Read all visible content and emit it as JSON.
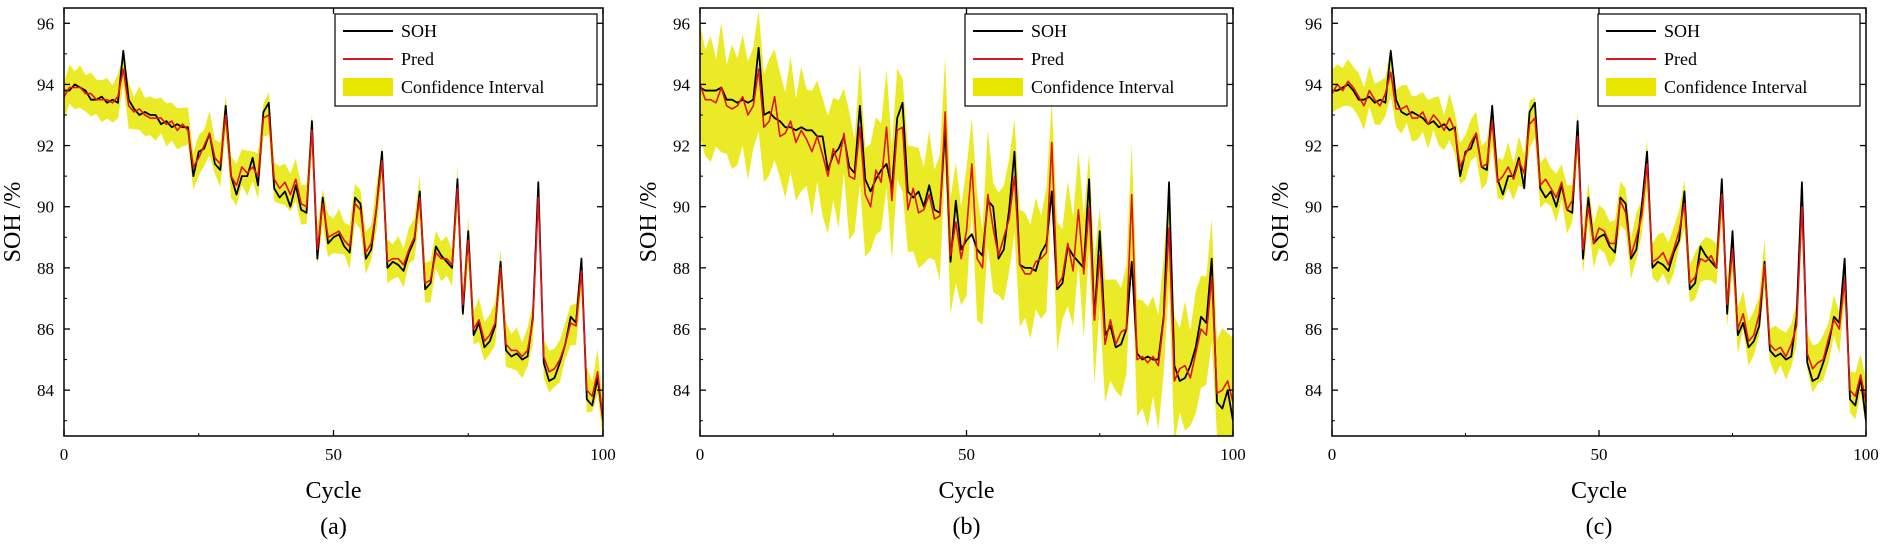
{
  "colors": {
    "soh": "#000000",
    "pred": "#e0141e",
    "ci": "#e8e600",
    "axis": "#000000",
    "background": "#ffffff"
  },
  "legend_labels": {
    "soh": "SOH",
    "pred": "Pred",
    "ci": "Confidence Interval"
  },
  "chart_data": [
    {
      "type": "line",
      "panel_label": "(a)",
      "xlabel": "Cycle",
      "ylabel": "SOH /%",
      "xlim": [
        0,
        100
      ],
      "ylim": [
        82.5,
        96.5
      ],
      "x_ticks": [
        0,
        50,
        100
      ],
      "y_ticks": [
        84,
        86,
        88,
        90,
        92,
        94,
        96
      ],
      "grid": false,
      "legend_position": "top-right",
      "x": [
        0,
        1,
        2,
        3,
        4,
        5,
        6,
        7,
        8,
        9,
        10,
        11,
        12,
        13,
        14,
        15,
        16,
        17,
        18,
        19,
        20,
        21,
        22,
        23,
        24,
        25,
        26,
        27,
        28,
        29,
        30,
        31,
        32,
        33,
        34,
        35,
        36,
        37,
        38,
        39,
        40,
        41,
        42,
        43,
        44,
        45,
        46,
        47,
        48,
        49,
        50,
        51,
        52,
        53,
        54,
        55,
        56,
        57,
        58,
        59,
        60,
        61,
        62,
        63,
        64,
        65,
        66,
        67,
        68,
        69,
        70,
        71,
        72,
        73,
        74,
        75,
        76,
        77,
        78,
        79,
        80,
        81,
        82,
        83,
        84,
        85,
        86,
        87,
        88,
        89,
        90,
        91,
        92,
        93,
        94,
        95,
        96,
        97,
        98,
        99,
        100
      ],
      "series": [
        {
          "name": "SOH",
          "values": [
            93.8,
            93.8,
            94.0,
            93.9,
            93.8,
            93.5,
            93.5,
            93.6,
            93.4,
            93.5,
            93.4,
            95.1,
            93.5,
            93.2,
            93.0,
            93.1,
            93.0,
            93.0,
            92.7,
            92.8,
            92.6,
            92.7,
            92.6,
            92.6,
            91.0,
            91.8,
            91.9,
            92.4,
            91.4,
            91.2,
            93.3,
            91.0,
            90.4,
            91.0,
            91.0,
            91.6,
            90.7,
            93.1,
            93.4,
            90.6,
            90.3,
            90.5,
            90.0,
            90.7,
            89.9,
            89.8,
            92.8,
            88.3,
            90.3,
            88.8,
            89.0,
            89.1,
            88.7,
            88.5,
            90.3,
            90.1,
            88.3,
            88.6,
            90.0,
            91.8,
            88.0,
            88.2,
            88.1,
            87.9,
            88.5,
            88.9,
            90.5,
            87.3,
            87.5,
            88.7,
            88.4,
            88.2,
            88.0,
            90.9,
            86.5,
            89.2,
            85.8,
            86.2,
            85.4,
            85.6,
            86.1,
            88.2,
            85.3,
            85.1,
            85.2,
            85.0,
            85.1,
            86.4,
            90.8,
            84.9,
            84.3,
            84.4,
            84.9,
            85.5,
            86.4,
            86.2,
            88.3,
            83.7,
            83.5,
            84.4,
            83.0
          ]
        },
        {
          "name": "Pred",
          "values": [
            93.6,
            93.9,
            93.9,
            93.9,
            93.7,
            93.7,
            93.5,
            93.5,
            93.5,
            93.4,
            93.6,
            94.5,
            93.3,
            93.1,
            93.2,
            93.0,
            92.9,
            92.9,
            92.9,
            92.7,
            92.8,
            92.5,
            92.7,
            92.5,
            91.3,
            91.6,
            92.0,
            92.4,
            91.6,
            91.4,
            93.0,
            91.0,
            90.7,
            91.3,
            91.1,
            91.3,
            91.0,
            92.9,
            93.0,
            90.9,
            90.6,
            90.8,
            90.4,
            90.9,
            90.1,
            90.0,
            92.5,
            88.6,
            90.1,
            89.0,
            89.1,
            89.2,
            88.9,
            88.7,
            90.1,
            89.9,
            88.5,
            88.8,
            90.0,
            91.5,
            88.2,
            88.3,
            88.3,
            88.1,
            88.6,
            89.0,
            90.3,
            87.5,
            87.6,
            88.5,
            88.3,
            88.3,
            88.1,
            90.6,
            86.8,
            88.9,
            86.0,
            86.3,
            85.6,
            85.8,
            86.2,
            88.0,
            85.5,
            85.3,
            85.3,
            85.1,
            85.3,
            86.3,
            90.3,
            85.1,
            84.6,
            84.7,
            85.0,
            85.5,
            86.2,
            86.1,
            87.9,
            84.0,
            83.8,
            84.6,
            83.0
          ]
        }
      ],
      "ci_halfwidth": 0.6
    },
    {
      "type": "line",
      "panel_label": "(b)",
      "xlabel": "Cycle",
      "ylabel": "SOH /%",
      "xlim": [
        0,
        100
      ],
      "ylim": [
        82.5,
        96.5
      ],
      "x_ticks": [
        0,
        50,
        100
      ],
      "y_ticks": [
        84,
        86,
        88,
        90,
        92,
        94,
        96
      ],
      "grid": false,
      "legend_position": "top-right",
      "x": [
        0,
        1,
        2,
        3,
        4,
        5,
        6,
        7,
        8,
        9,
        10,
        11,
        12,
        13,
        14,
        15,
        16,
        17,
        18,
        19,
        20,
        21,
        22,
        23,
        24,
        25,
        26,
        27,
        28,
        29,
        30,
        31,
        32,
        33,
        34,
        35,
        36,
        37,
        38,
        39,
        40,
        41,
        42,
        43,
        44,
        45,
        46,
        47,
        48,
        49,
        50,
        51,
        52,
        53,
        54,
        55,
        56,
        57,
        58,
        59,
        60,
        61,
        62,
        63,
        64,
        65,
        66,
        67,
        68,
        69,
        70,
        71,
        72,
        73,
        74,
        75,
        76,
        77,
        78,
        79,
        80,
        81,
        82,
        83,
        84,
        85,
        86,
        87,
        88,
        89,
        90,
        91,
        92,
        93,
        94,
        95,
        96,
        97,
        98,
        99,
        100
      ],
      "series": [
        {
          "name": "SOH",
          "values": [
            93.9,
            93.8,
            93.8,
            93.8,
            93.9,
            93.5,
            93.5,
            93.4,
            93.5,
            93.4,
            93.5,
            95.2,
            93.0,
            93.1,
            92.9,
            92.8,
            92.6,
            92.6,
            92.5,
            92.6,
            92.5,
            92.5,
            92.3,
            92.3,
            91.2,
            91.7,
            91.9,
            92.3,
            91.3,
            91.1,
            93.3,
            90.9,
            90.5,
            90.9,
            91.2,
            91.4,
            90.6,
            92.9,
            93.4,
            90.5,
            90.3,
            90.5,
            90.0,
            90.7,
            89.9,
            89.8,
            92.6,
            88.2,
            90.2,
            88.6,
            88.9,
            89.1,
            88.6,
            88.4,
            90.2,
            90.0,
            88.3,
            88.6,
            89.9,
            91.8,
            88.1,
            88.0,
            88.0,
            87.9,
            88.5,
            88.8,
            90.5,
            87.3,
            87.5,
            88.7,
            88.4,
            88.2,
            88.0,
            90.9,
            86.3,
            89.2,
            85.8,
            86.1,
            85.4,
            85.5,
            86.0,
            88.2,
            85.2,
            85.0,
            85.1,
            85.0,
            85.0,
            86.4,
            90.8,
            84.8,
            84.3,
            84.4,
            84.8,
            85.4,
            86.4,
            86.2,
            88.3,
            83.6,
            83.4,
            84.0,
            83.0
          ]
        },
        {
          "name": "Pred",
          "values": [
            94.0,
            93.5,
            93.5,
            93.4,
            93.9,
            93.3,
            93.2,
            93.3,
            93.6,
            93.0,
            93.3,
            94.5,
            92.6,
            92.8,
            93.6,
            92.3,
            92.4,
            92.8,
            92.1,
            92.5,
            92.2,
            91.8,
            92.3,
            91.7,
            91.0,
            91.9,
            91.4,
            92.4,
            91.0,
            90.9,
            92.6,
            90.4,
            90.0,
            91.2,
            90.8,
            92.6,
            90.2,
            92.5,
            92.6,
            89.9,
            90.6,
            89.8,
            89.9,
            90.4,
            89.6,
            89.7,
            93.1,
            88.4,
            89.5,
            88.3,
            89.2,
            91.4,
            88.3,
            88.0,
            90.4,
            89.3,
            88.4,
            89.0,
            89.6,
            91.0,
            88.1,
            87.8,
            87.8,
            88.2,
            88.3,
            88.5,
            92.1,
            87.4,
            87.7,
            88.8,
            87.9,
            89.9,
            87.8,
            90.0,
            86.3,
            88.4,
            85.5,
            86.3,
            85.5,
            85.9,
            86.0,
            90.4,
            85.0,
            85.1,
            84.9,
            85.1,
            84.8,
            86.3,
            89.3,
            84.3,
            84.7,
            84.8,
            84.4,
            85.2,
            86.0,
            85.8,
            87.7,
            83.9,
            84.0,
            84.3,
            83.6
          ]
        }
      ],
      "ci_halfwidth": 1.7
    },
    {
      "type": "line",
      "panel_label": "(c)",
      "xlabel": "Cycle",
      "ylabel": "SOH /%",
      "xlim": [
        0,
        100
      ],
      "ylim": [
        82.5,
        96.5
      ],
      "x_ticks": [
        0,
        50,
        100
      ],
      "y_ticks": [
        84,
        86,
        88,
        90,
        92,
        94,
        96
      ],
      "grid": false,
      "legend_position": "top-right",
      "x": [
        0,
        1,
        2,
        3,
        4,
        5,
        6,
        7,
        8,
        9,
        10,
        11,
        12,
        13,
        14,
        15,
        16,
        17,
        18,
        19,
        20,
        21,
        22,
        23,
        24,
        25,
        26,
        27,
        28,
        29,
        30,
        31,
        32,
        33,
        34,
        35,
        36,
        37,
        38,
        39,
        40,
        41,
        42,
        43,
        44,
        45,
        46,
        47,
        48,
        49,
        50,
        51,
        52,
        53,
        54,
        55,
        56,
        57,
        58,
        59,
        60,
        61,
        62,
        63,
        64,
        65,
        66,
        67,
        68,
        69,
        70,
        71,
        72,
        73,
        74,
        75,
        76,
        77,
        78,
        79,
        80,
        81,
        82,
        83,
        84,
        85,
        86,
        87,
        88,
        89,
        90,
        91,
        92,
        93,
        94,
        95,
        96,
        97,
        98,
        99,
        100
      ],
      "series": [
        {
          "name": "SOH",
          "values": [
            93.8,
            93.8,
            93.9,
            94.0,
            93.8,
            93.5,
            93.5,
            93.6,
            93.4,
            93.5,
            93.4,
            95.1,
            93.5,
            93.1,
            93.0,
            93.1,
            93.0,
            92.9,
            92.7,
            92.8,
            92.6,
            92.7,
            92.5,
            92.6,
            91.0,
            91.8,
            91.9,
            92.4,
            91.3,
            91.2,
            93.3,
            90.9,
            90.4,
            91.0,
            91.0,
            91.6,
            90.6,
            93.1,
            93.4,
            90.6,
            90.3,
            90.5,
            90.0,
            90.7,
            89.9,
            89.8,
            92.8,
            88.3,
            90.3,
            88.8,
            89.0,
            89.1,
            88.7,
            88.5,
            90.3,
            90.1,
            88.3,
            88.6,
            90.0,
            91.8,
            88.0,
            88.2,
            88.1,
            87.9,
            88.5,
            88.9,
            90.5,
            87.3,
            87.5,
            88.7,
            88.4,
            88.2,
            88.0,
            90.9,
            86.5,
            89.2,
            85.8,
            86.2,
            85.4,
            85.6,
            86.1,
            88.2,
            85.3,
            85.1,
            85.2,
            85.0,
            85.1,
            86.4,
            90.8,
            84.9,
            84.3,
            84.4,
            84.9,
            85.5,
            86.4,
            86.2,
            88.3,
            83.7,
            83.5,
            84.4,
            83.0
          ]
        },
        {
          "name": "Pred",
          "values": [
            93.7,
            94.0,
            93.8,
            94.1,
            93.9,
            93.6,
            93.3,
            93.8,
            93.5,
            93.3,
            93.7,
            94.4,
            93.2,
            93.2,
            93.3,
            92.9,
            92.9,
            93.1,
            92.7,
            93.0,
            92.8,
            92.5,
            92.9,
            92.5,
            91.3,
            91.7,
            92.1,
            92.4,
            91.3,
            91.4,
            92.8,
            90.8,
            91.0,
            91.3,
            90.9,
            91.5,
            91.1,
            92.7,
            92.9,
            90.7,
            90.9,
            90.6,
            90.3,
            90.8,
            89.9,
            90.2,
            92.3,
            88.6,
            90.0,
            88.8,
            89.3,
            89.2,
            88.8,
            88.8,
            90.2,
            89.8,
            88.4,
            89.0,
            89.7,
            91.4,
            88.2,
            88.3,
            88.5,
            88.1,
            88.6,
            89.2,
            90.1,
            87.5,
            87.7,
            88.3,
            88.2,
            88.4,
            88.0,
            90.4,
            86.8,
            88.6,
            86.0,
            86.5,
            85.6,
            85.8,
            86.5,
            88.1,
            85.5,
            85.3,
            85.4,
            85.1,
            85.5,
            86.1,
            90.0,
            85.2,
            84.7,
            84.9,
            85.0,
            85.7,
            86.3,
            86.0,
            87.6,
            84.0,
            83.8,
            84.5,
            83.6
          ]
        }
      ],
      "ci_halfwidth": 0.65
    }
  ]
}
